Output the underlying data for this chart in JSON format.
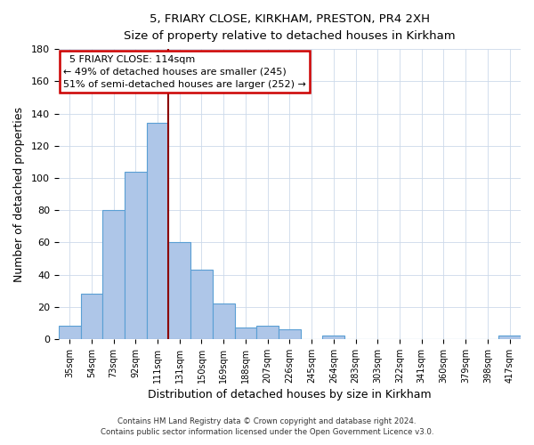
{
  "title": "5, FRIARY CLOSE, KIRKHAM, PRESTON, PR4 2XH",
  "subtitle": "Size of property relative to detached houses in Kirkham",
  "xlabel": "Distribution of detached houses by size in Kirkham",
  "ylabel": "Number of detached properties",
  "bin_labels": [
    "35sqm",
    "54sqm",
    "73sqm",
    "92sqm",
    "111sqm",
    "131sqm",
    "150sqm",
    "169sqm",
    "188sqm",
    "207sqm",
    "226sqm",
    "245sqm",
    "264sqm",
    "283sqm",
    "303sqm",
    "322sqm",
    "341sqm",
    "360sqm",
    "379sqm",
    "398sqm",
    "417sqm"
  ],
  "bar_heights": [
    8,
    28,
    80,
    104,
    134,
    60,
    43,
    22,
    7,
    8,
    6,
    0,
    2,
    0,
    0,
    0,
    0,
    0,
    0,
    0,
    2
  ],
  "bar_color": "#aec6e8",
  "bar_edge_color": "#5a9fd4",
  "ylim": [
    0,
    180
  ],
  "yticks": [
    0,
    20,
    40,
    60,
    80,
    100,
    120,
    140,
    160,
    180
  ],
  "property_line_x": 5,
  "property_line_color": "#8b0000",
  "annotation_title": "5 FRIARY CLOSE: 114sqm",
  "annotation_line1": "← 49% of detached houses are smaller (245)",
  "annotation_line2": "51% of semi-detached houses are larger (252) →",
  "annotation_box_color": "#ffffff",
  "annotation_box_edge": "#cc0000",
  "footer1": "Contains HM Land Registry data © Crown copyright and database right 2024.",
  "footer2": "Contains public sector information licensed under the Open Government Licence v3.0.",
  "bg_color": "#ffffff",
  "grid_color": "#ccd9ea"
}
